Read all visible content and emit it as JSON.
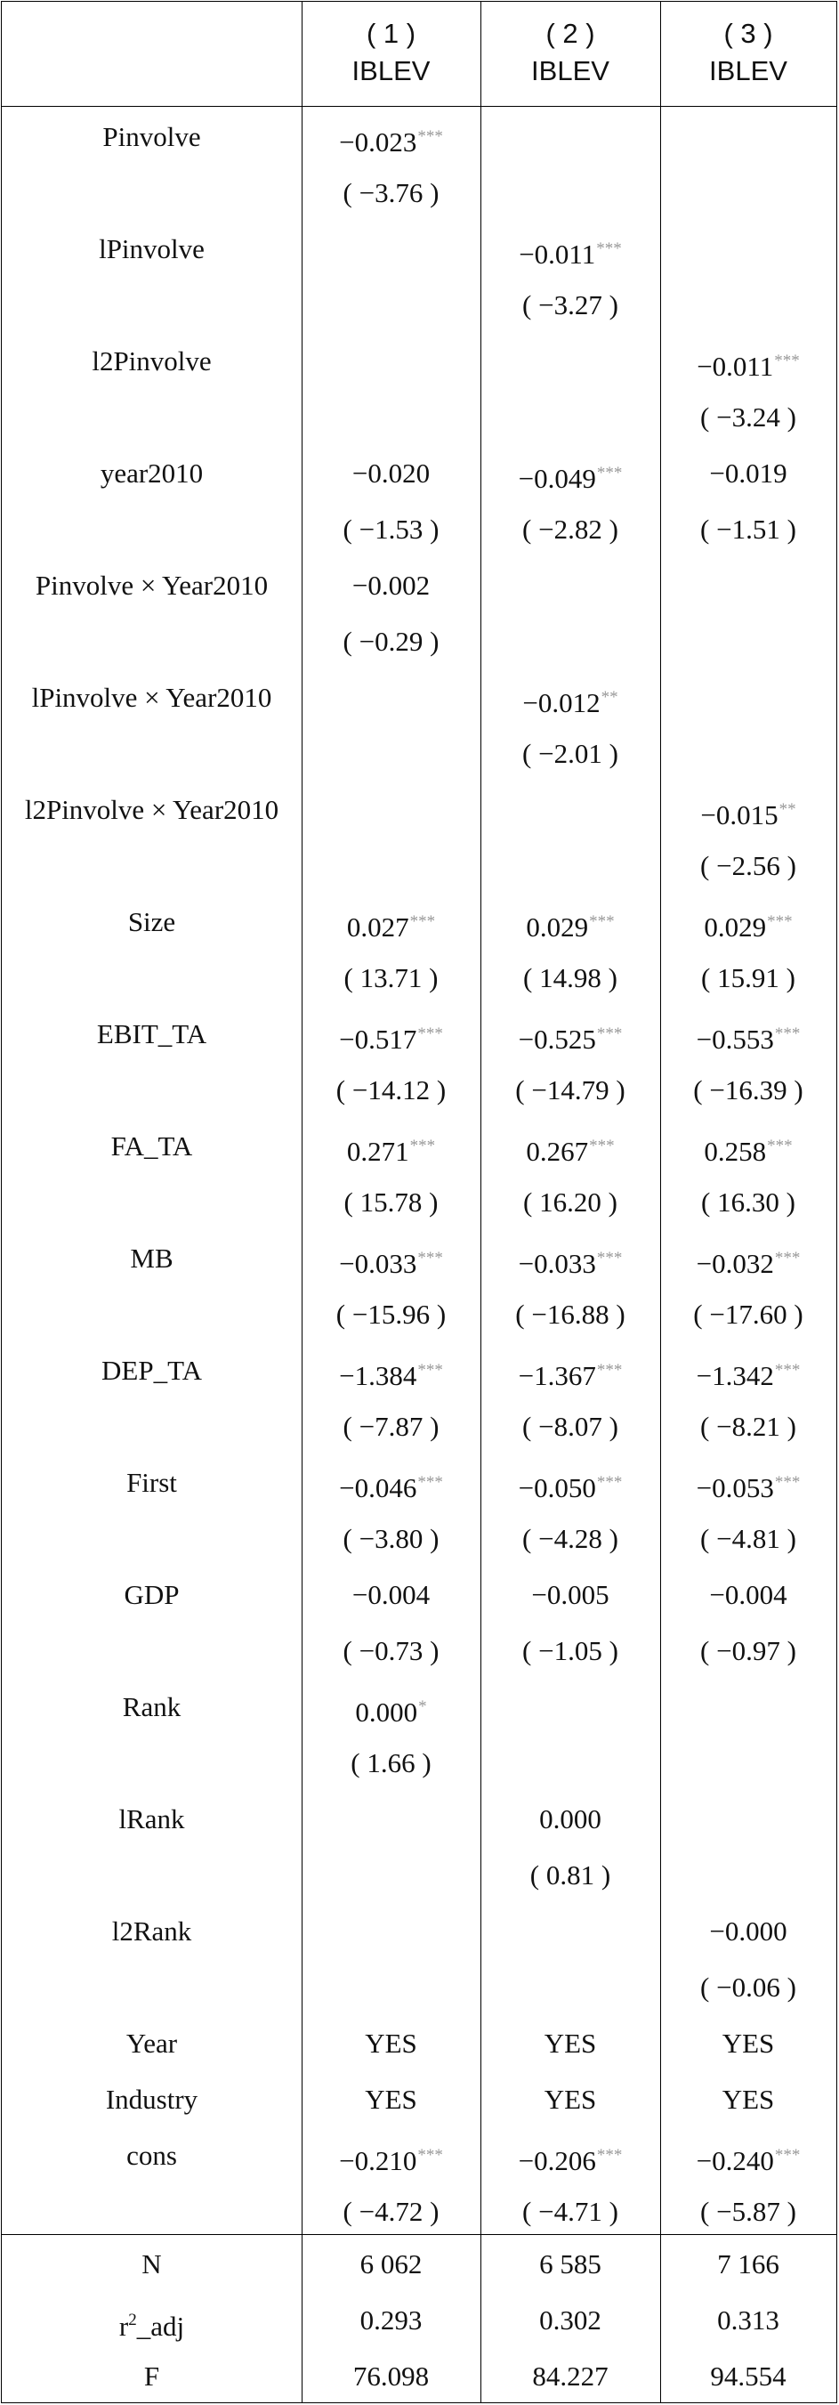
{
  "header": {
    "cols": [
      {
        "num": "( 1 )",
        "var": "IBLEV"
      },
      {
        "num": "( 2 )",
        "var": "IBLEV"
      },
      {
        "num": "( 3 )",
        "var": "IBLEV"
      }
    ]
  },
  "rows": [
    {
      "label": "Pinvolve",
      "c1": {
        "v": "−0.023",
        "s": "***"
      },
      "c2": {
        "v": "",
        "s": ""
      },
      "c3": {
        "v": "",
        "s": ""
      }
    },
    {
      "label": "",
      "c1": {
        "v": "( −3.76 )",
        "s": ""
      },
      "c2": {
        "v": "",
        "s": ""
      },
      "c3": {
        "v": "",
        "s": ""
      }
    },
    {
      "label": "lPinvolve",
      "c1": {
        "v": "",
        "s": ""
      },
      "c2": {
        "v": "−0.011",
        "s": "***"
      },
      "c3": {
        "v": "",
        "s": ""
      }
    },
    {
      "label": "",
      "c1": {
        "v": "",
        "s": ""
      },
      "c2": {
        "v": "( −3.27 )",
        "s": ""
      },
      "c3": {
        "v": "",
        "s": ""
      }
    },
    {
      "label": "l2Pinvolve",
      "c1": {
        "v": "",
        "s": ""
      },
      "c2": {
        "v": "",
        "s": ""
      },
      "c3": {
        "v": "−0.011",
        "s": "***"
      }
    },
    {
      "label": "",
      "c1": {
        "v": "",
        "s": ""
      },
      "c2": {
        "v": "",
        "s": ""
      },
      "c3": {
        "v": "( −3.24 )",
        "s": ""
      }
    },
    {
      "label": "year2010",
      "c1": {
        "v": "−0.020",
        "s": ""
      },
      "c2": {
        "v": "−0.049",
        "s": "***"
      },
      "c3": {
        "v": "−0.019",
        "s": ""
      }
    },
    {
      "label": "",
      "c1": {
        "v": "( −1.53 )",
        "s": ""
      },
      "c2": {
        "v": "( −2.82 )",
        "s": ""
      },
      "c3": {
        "v": "( −1.51 )",
        "s": ""
      }
    },
    {
      "label": "Pinvolve × Year2010",
      "c1": {
        "v": "−0.002",
        "s": ""
      },
      "c2": {
        "v": "",
        "s": ""
      },
      "c3": {
        "v": "",
        "s": ""
      }
    },
    {
      "label": "",
      "c1": {
        "v": "( −0.29 )",
        "s": ""
      },
      "c2": {
        "v": "",
        "s": ""
      },
      "c3": {
        "v": "",
        "s": ""
      }
    },
    {
      "label": "lPinvolve × Year2010",
      "c1": {
        "v": "",
        "s": ""
      },
      "c2": {
        "v": "−0.012",
        "s": "**"
      },
      "c3": {
        "v": "",
        "s": ""
      }
    },
    {
      "label": "",
      "c1": {
        "v": "",
        "s": ""
      },
      "c2": {
        "v": "( −2.01 )",
        "s": ""
      },
      "c3": {
        "v": "",
        "s": ""
      }
    },
    {
      "label": "l2Pinvolve × Year2010",
      "c1": {
        "v": "",
        "s": ""
      },
      "c2": {
        "v": "",
        "s": ""
      },
      "c3": {
        "v": "−0.015",
        "s": "**"
      }
    },
    {
      "label": "",
      "c1": {
        "v": "",
        "s": ""
      },
      "c2": {
        "v": "",
        "s": ""
      },
      "c3": {
        "v": "( −2.56 )",
        "s": ""
      }
    },
    {
      "label": "Size",
      "c1": {
        "v": "0.027",
        "s": "***"
      },
      "c2": {
        "v": "0.029",
        "s": "***"
      },
      "c3": {
        "v": "0.029",
        "s": "***"
      }
    },
    {
      "label": "",
      "c1": {
        "v": "( 13.71 )",
        "s": ""
      },
      "c2": {
        "v": "( 14.98 )",
        "s": ""
      },
      "c3": {
        "v": "( 15.91 )",
        "s": ""
      }
    },
    {
      "label": "EBIT_TA",
      "c1": {
        "v": "−0.517",
        "s": "***"
      },
      "c2": {
        "v": "−0.525",
        "s": "***"
      },
      "c3": {
        "v": "−0.553",
        "s": "***"
      }
    },
    {
      "label": "",
      "c1": {
        "v": "( −14.12 )",
        "s": ""
      },
      "c2": {
        "v": "( −14.79 )",
        "s": ""
      },
      "c3": {
        "v": "( −16.39 )",
        "s": ""
      }
    },
    {
      "label": "FA_TA",
      "c1": {
        "v": "0.271",
        "s": "***"
      },
      "c2": {
        "v": "0.267",
        "s": "***"
      },
      "c3": {
        "v": "0.258",
        "s": "***"
      }
    },
    {
      "label": "",
      "c1": {
        "v": "( 15.78 )",
        "s": ""
      },
      "c2": {
        "v": "( 16.20 )",
        "s": ""
      },
      "c3": {
        "v": "( 16.30 )",
        "s": ""
      }
    },
    {
      "label": "MB",
      "c1": {
        "v": "−0.033",
        "s": "***"
      },
      "c2": {
        "v": "−0.033",
        "s": "***"
      },
      "c3": {
        "v": "−0.032",
        "s": "***"
      }
    },
    {
      "label": "",
      "c1": {
        "v": "( −15.96 )",
        "s": ""
      },
      "c2": {
        "v": "( −16.88 )",
        "s": ""
      },
      "c3": {
        "v": "( −17.60 )",
        "s": ""
      }
    },
    {
      "label": "DEP_TA",
      "c1": {
        "v": "−1.384",
        "s": "***"
      },
      "c2": {
        "v": "−1.367",
        "s": "***"
      },
      "c3": {
        "v": "−1.342",
        "s": "***"
      }
    },
    {
      "label": "",
      "c1": {
        "v": "( −7.87 )",
        "s": ""
      },
      "c2": {
        "v": "( −8.07 )",
        "s": ""
      },
      "c3": {
        "v": "( −8.21 )",
        "s": ""
      }
    },
    {
      "label": "First",
      "c1": {
        "v": "−0.046",
        "s": "***"
      },
      "c2": {
        "v": "−0.050",
        "s": "***"
      },
      "c3": {
        "v": "−0.053",
        "s": "***"
      }
    },
    {
      "label": "",
      "c1": {
        "v": "( −3.80 )",
        "s": ""
      },
      "c2": {
        "v": "( −4.28 )",
        "s": ""
      },
      "c3": {
        "v": "( −4.81 )",
        "s": ""
      }
    },
    {
      "label": "GDP",
      "c1": {
        "v": "−0.004",
        "s": ""
      },
      "c2": {
        "v": "−0.005",
        "s": ""
      },
      "c3": {
        "v": "−0.004",
        "s": ""
      }
    },
    {
      "label": "",
      "c1": {
        "v": "( −0.73 )",
        "s": ""
      },
      "c2": {
        "v": "( −1.05 )",
        "s": ""
      },
      "c3": {
        "v": "( −0.97 )",
        "s": ""
      }
    },
    {
      "label": "Rank",
      "c1": {
        "v": "0.000",
        "s": "*"
      },
      "c2": {
        "v": "",
        "s": ""
      },
      "c3": {
        "v": "",
        "s": ""
      }
    },
    {
      "label": "",
      "c1": {
        "v": "( 1.66 )",
        "s": ""
      },
      "c2": {
        "v": "",
        "s": ""
      },
      "c3": {
        "v": "",
        "s": ""
      }
    },
    {
      "label": "lRank",
      "c1": {
        "v": "",
        "s": ""
      },
      "c2": {
        "v": "0.000",
        "s": ""
      },
      "c3": {
        "v": "",
        "s": ""
      }
    },
    {
      "label": "",
      "c1": {
        "v": "",
        "s": ""
      },
      "c2": {
        "v": "( 0.81 )",
        "s": ""
      },
      "c3": {
        "v": "",
        "s": ""
      }
    },
    {
      "label": "l2Rank",
      "c1": {
        "v": "",
        "s": ""
      },
      "c2": {
        "v": "",
        "s": ""
      },
      "c3": {
        "v": "−0.000",
        "s": ""
      }
    },
    {
      "label": "",
      "c1": {
        "v": "",
        "s": ""
      },
      "c2": {
        "v": "",
        "s": ""
      },
      "c3": {
        "v": "( −0.06 )",
        "s": ""
      }
    },
    {
      "label": "Year",
      "c1": {
        "v": "YES",
        "s": ""
      },
      "c2": {
        "v": "YES",
        "s": ""
      },
      "c3": {
        "v": "YES",
        "s": ""
      }
    },
    {
      "label": "Industry",
      "c1": {
        "v": "YES",
        "s": ""
      },
      "c2": {
        "v": "YES",
        "s": ""
      },
      "c3": {
        "v": "YES",
        "s": ""
      }
    },
    {
      "label": "cons",
      "c1": {
        "v": "−0.210",
        "s": "***"
      },
      "c2": {
        "v": "−0.206",
        "s": "***"
      },
      "c3": {
        "v": "−0.240",
        "s": "***"
      }
    },
    {
      "label": "",
      "c1": {
        "v": "( −4.72 )",
        "s": ""
      },
      "c2": {
        "v": "( −4.71 )",
        "s": ""
      },
      "c3": {
        "v": "( −5.87 )",
        "s": ""
      }
    }
  ],
  "footer": [
    {
      "label": "N",
      "sup": "",
      "label_rest": "",
      "c1": "6 062",
      "c2": "6 585",
      "c3": "7 166"
    },
    {
      "label": "r",
      "sup": "2",
      "label_rest": "_adj",
      "c1": "0.293",
      "c2": "0.302",
      "c3": "0.313"
    },
    {
      "label": "F",
      "sup": "",
      "label_rest": "",
      "c1": "76.098",
      "c2": "84.227",
      "c3": "94.554"
    }
  ]
}
